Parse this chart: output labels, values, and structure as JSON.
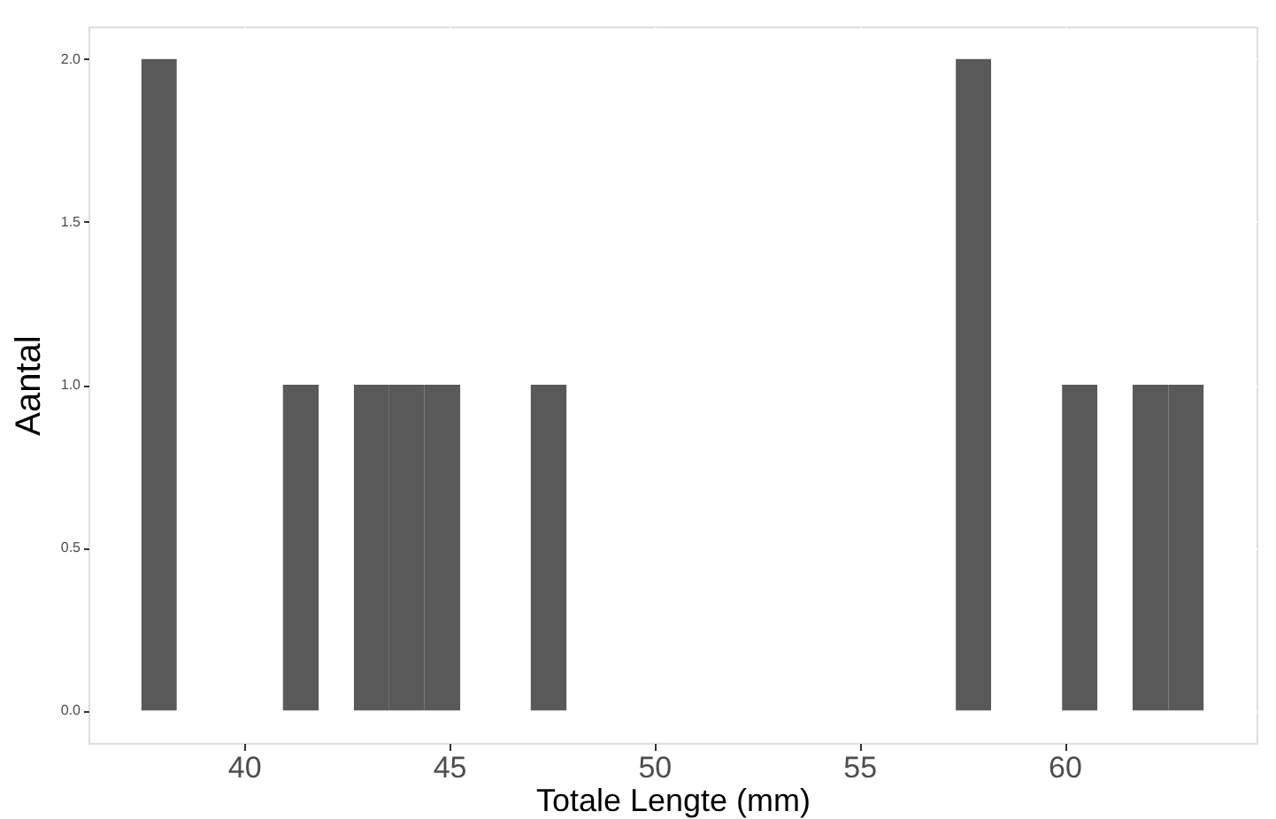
{
  "chart_data": {
    "type": "histogram",
    "xlabel": "Totale Lengte (mm)",
    "ylabel": "Aantal",
    "color": "#595959",
    "bins": [
      37.5,
      38.36,
      39.23,
      40.09,
      40.95,
      41.82,
      42.68,
      43.54,
      44.4,
      45.27,
      46.13,
      46.99,
      47.86,
      48.72,
      49.58,
      50.45,
      51.31,
      52.17,
      53.03,
      53.9,
      54.76,
      55.62,
      56.49,
      57.35,
      58.21,
      59.08,
      59.94,
      60.8,
      61.66,
      62.53,
      63.39
    ],
    "values": [
      2,
      0,
      0,
      0,
      1,
      0,
      1,
      1,
      1,
      0,
      0,
      1,
      0,
      0,
      0,
      0,
      0,
      0,
      0,
      0,
      0,
      0,
      0,
      2,
      0,
      0,
      1,
      0,
      1,
      1
    ],
    "xlim": [
      36.21,
      64.68
    ],
    "xticks": [
      40,
      45,
      50,
      55,
      60
    ],
    "ylim": [
      -0.1,
      2.1
    ],
    "yticks": [
      {
        "value": 0,
        "label": "0.0"
      },
      {
        "value": 0.5,
        "label": "0.5"
      },
      {
        "value": 1,
        "label": "1.0"
      },
      {
        "value": 1.5,
        "label": "1.5"
      },
      {
        "value": 2,
        "label": "2.0"
      }
    ],
    "grid": true
  }
}
